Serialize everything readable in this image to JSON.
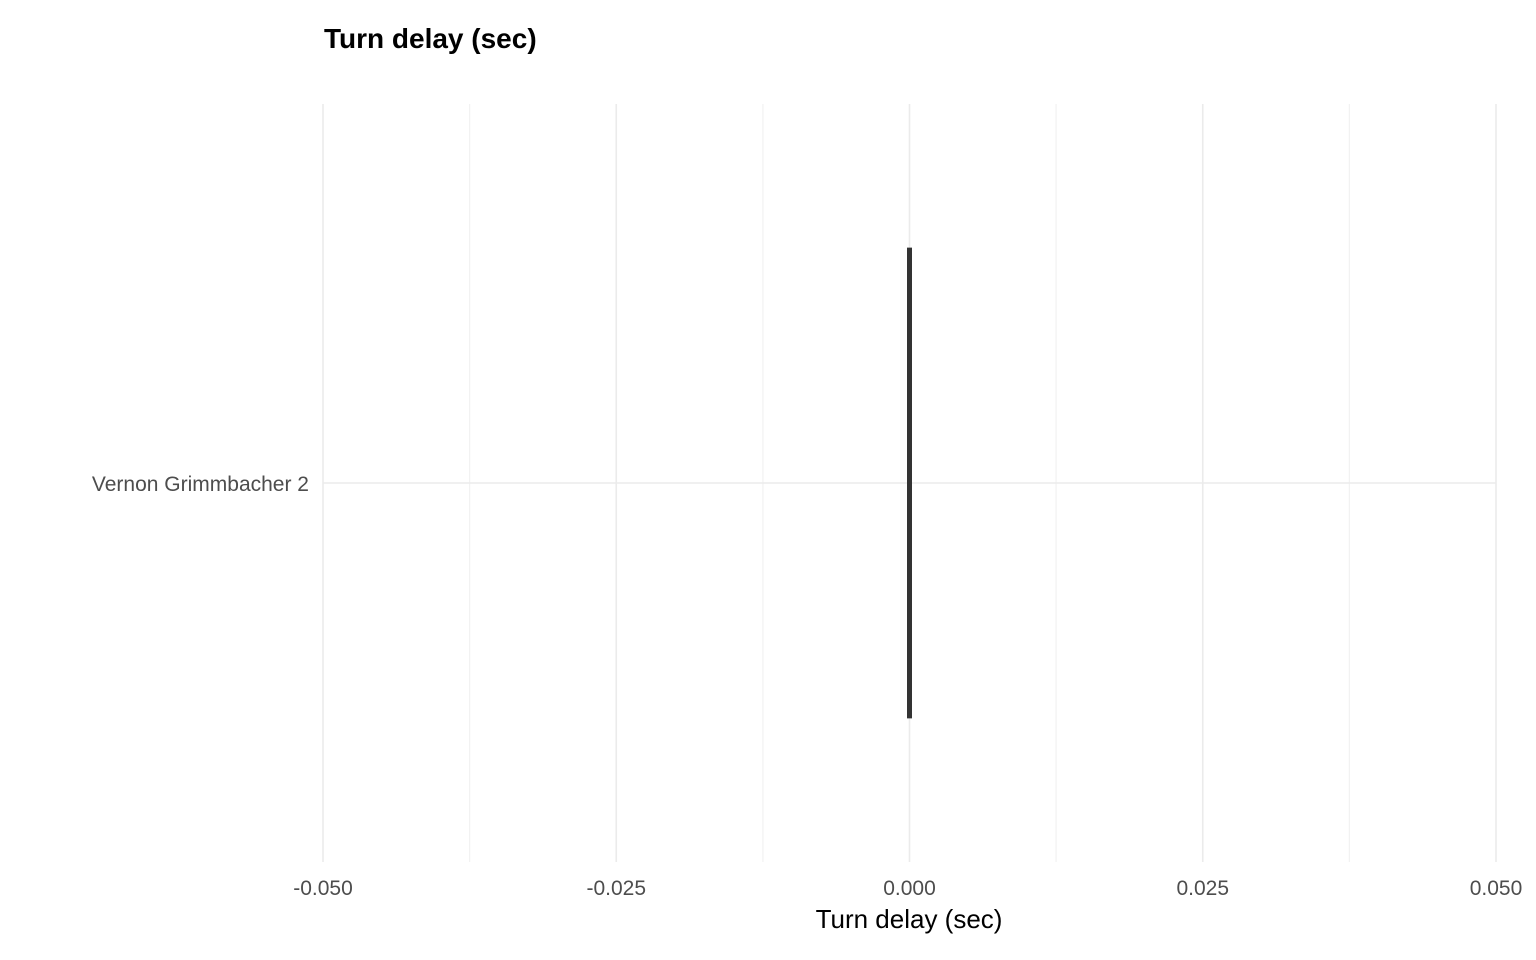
{
  "chart_data": {
    "type": "bar",
    "orientation": "horizontal",
    "title": "Turn delay (sec)",
    "xlabel": "Turn delay (sec)",
    "ylabel": "",
    "categories": [
      "Vernon Grimmbacher 2"
    ],
    "values": [
      0.0
    ],
    "xlim": [
      -0.05,
      0.05
    ],
    "x_ticks": [
      -0.05,
      -0.025,
      0.0,
      0.025,
      0.05
    ],
    "x_tick_labels": [
      "-0.050",
      "-0.025",
      "0.000",
      "0.025",
      "0.050"
    ],
    "x_minor_ticks": [
      -0.0375,
      -0.0125,
      0.0125,
      0.0375
    ],
    "grid": true,
    "legend": "none",
    "colors": {
      "bar": "#333333",
      "grid_major": "#ebebeb",
      "grid_minor": "#f2f2f2",
      "tick_label": "#4d4d4d",
      "title": "#000000"
    }
  }
}
